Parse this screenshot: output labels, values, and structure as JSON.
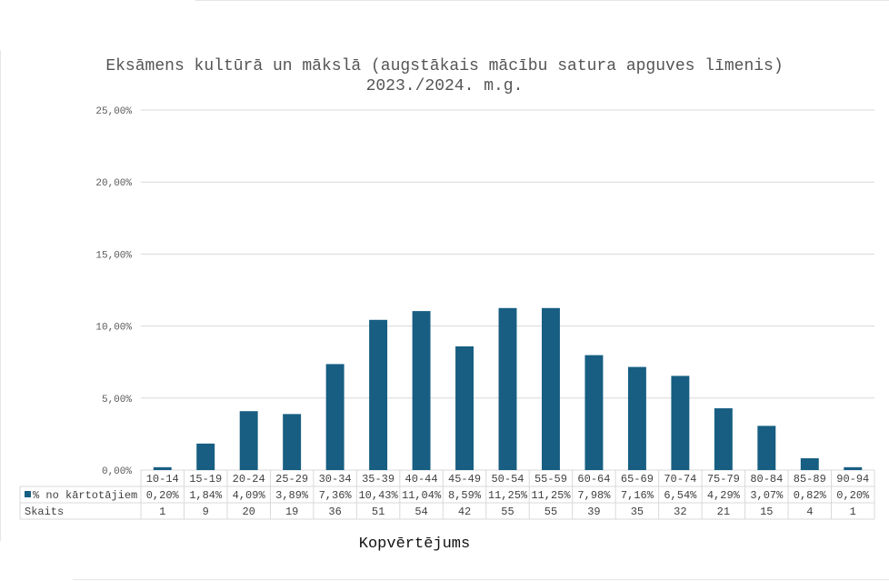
{
  "chart_data": {
    "type": "bar",
    "title": "Eksāmens kultūrā un mākslā (augstākais mācību satura apguves līmenis)",
    "subtitle": "2023./2024. m.g.",
    "xlabel": "Kopvērtējums",
    "ylabel": "",
    "ylim": [
      0,
      25
    ],
    "yticks": [
      "0,00%",
      "5,00%",
      "10,00%",
      "15,00%",
      "20,00%",
      "25,00%"
    ],
    "grid": true,
    "categories": [
      "10-14",
      "15-19",
      "20-24",
      "25-29",
      "30-34",
      "35-39",
      "40-44",
      "45-49",
      "50-54",
      "55-59",
      "60-64",
      "65-69",
      "70-74",
      "75-79",
      "80-84",
      "85-89",
      "90-94"
    ],
    "series": [
      {
        "name": "% no kārtotājiem",
        "color": "#175e82",
        "values": [
          0.2,
          1.84,
          4.09,
          3.89,
          7.36,
          10.43,
          11.04,
          8.59,
          11.25,
          11.25,
          7.98,
          7.16,
          6.54,
          4.29,
          3.07,
          0.82,
          0.2
        ],
        "labels": [
          "0,20%",
          "1,84%",
          "4,09%",
          "3,89%",
          "7,36%",
          "10,43%",
          "11,04%",
          "8,59%",
          "11,25%",
          "11,25%",
          "7,98%",
          "7,16%",
          "6,54%",
          "4,29%",
          "3,07%",
          "0,82%",
          "0,20%"
        ]
      }
    ],
    "table_rows": [
      {
        "name": "Skaits",
        "values": [
          "1",
          "9",
          "20",
          "19",
          "36",
          "51",
          "54",
          "42",
          "55",
          "55",
          "39",
          "35",
          "32",
          "21",
          "15",
          "4",
          "1"
        ]
      }
    ]
  }
}
